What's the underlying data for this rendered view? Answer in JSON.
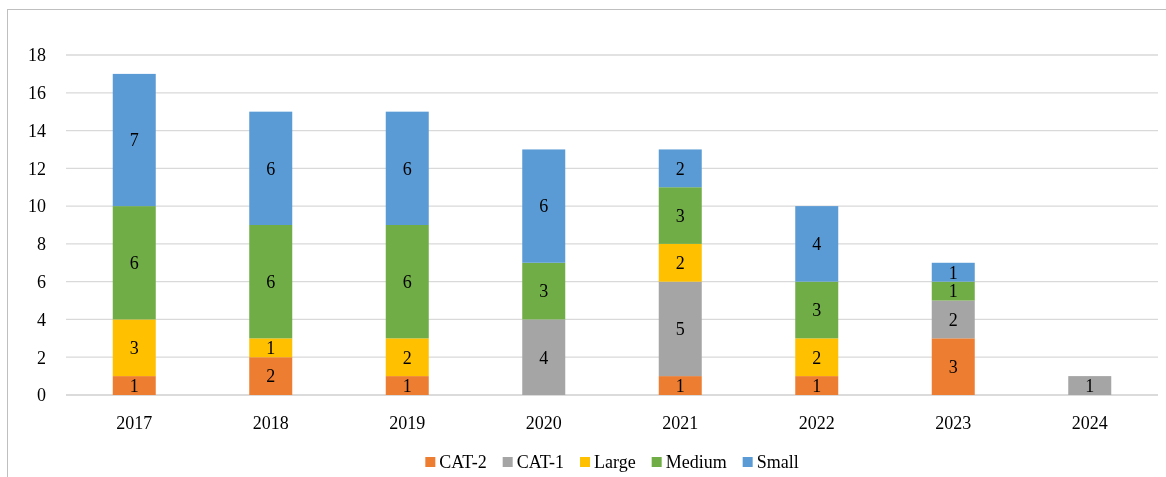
{
  "chart_data": {
    "type": "bar",
    "stacked": true,
    "categories": [
      "2017",
      "2018",
      "2019",
      "2020",
      "2021",
      "2022",
      "2023",
      "2024"
    ],
    "series": [
      {
        "name": "CAT-2",
        "color": "#ed7d31",
        "values": [
          1,
          2,
          1,
          null,
          1,
          1,
          3,
          null
        ]
      },
      {
        "name": "CAT-1",
        "color": "#a5a5a5",
        "values": [
          null,
          null,
          null,
          4,
          5,
          null,
          2,
          1
        ]
      },
      {
        "name": "Large",
        "color": "#ffc000",
        "values": [
          3,
          1,
          2,
          null,
          2,
          2,
          null,
          null
        ]
      },
      {
        "name": "Medium",
        "color": "#70ad47",
        "values": [
          6,
          6,
          6,
          3,
          3,
          3,
          1,
          null
        ]
      },
      {
        "name": "Small",
        "color": "#5b9bd5",
        "values": [
          7,
          6,
          6,
          6,
          2,
          4,
          1,
          null
        ]
      }
    ],
    "ylim": [
      0,
      18
    ],
    "yticks": [
      0,
      2,
      4,
      6,
      8,
      10,
      12,
      14,
      16,
      18
    ],
    "grid": "y",
    "legend": "bottom",
    "data_labels": true
  }
}
